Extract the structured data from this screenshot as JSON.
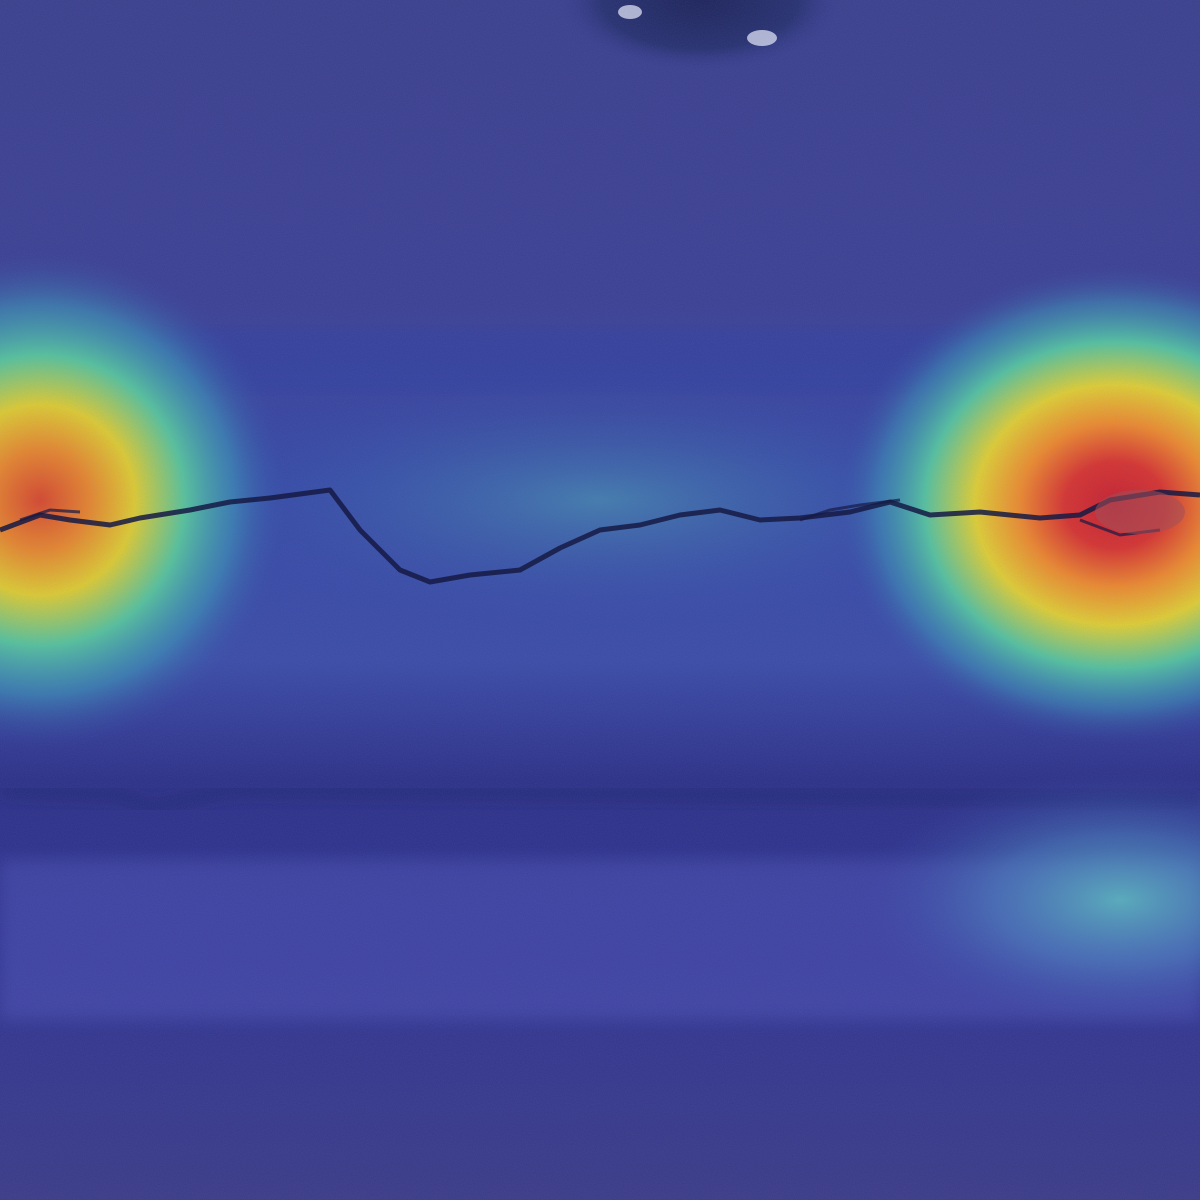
{
  "image": {
    "kind": "heatmap-overlay-photo",
    "subject": "concrete-surface-crack",
    "colormap": "jet",
    "colors": {
      "base_blue": "#2e3384",
      "band_blue": "#3548a6",
      "teal": "#3fb3b0",
      "yellow": "#e8d22c",
      "orange": "#f08a2a",
      "red": "#d8242a",
      "crack": "#1a1f4a"
    },
    "hotspots": [
      {
        "name": "left-activation",
        "intensity": 0.85
      },
      {
        "name": "right-activation",
        "intensity": 1.0
      },
      {
        "name": "lower-right-activation",
        "intensity": 0.35
      }
    ]
  }
}
